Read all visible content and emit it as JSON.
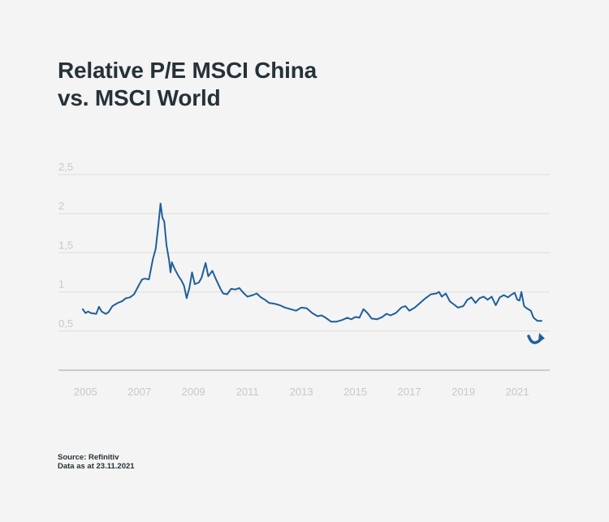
{
  "title_line1": "Relative P/E MSCI China",
  "title_line2": "vs. MSCI World",
  "source_line": "Source: Refinitiv",
  "date_line": "Data as at 23.11.2021",
  "colors": {
    "line": "#1f5f9a",
    "grid": "#dddddd",
    "axis": "#bdbdbd",
    "tick": "#c8c8c8",
    "title": "#263238",
    "background": "#f4f4f4"
  },
  "annotation_icon": "curved-arrow-up-icon",
  "chart_data": {
    "type": "line",
    "title": "Relative P/E MSCI China vs. MSCI World",
    "xlabel": "",
    "ylabel": "",
    "xlim": [
      2004,
      2022.2
    ],
    "ylim": [
      0,
      2.5
    ],
    "x_ticks": [
      2005,
      2007,
      2009,
      2011,
      2013,
      2015,
      2017,
      2019,
      2021
    ],
    "y_ticks": [
      {
        "value": 0.5,
        "label": "0,5"
      },
      {
        "value": 1,
        "label": "1"
      },
      {
        "value": 1.5,
        "label": "1,5"
      },
      {
        "value": 2,
        "label": "2"
      },
      {
        "value": 2.5,
        "label": "2,5"
      }
    ],
    "grid": true,
    "series": [
      {
        "points": [
          [
            2004.9,
            0.78
          ],
          [
            2005.0,
            0.73
          ],
          [
            2005.1,
            0.75
          ],
          [
            2005.2,
            0.73
          ],
          [
            2005.4,
            0.72
          ],
          [
            2005.5,
            0.81
          ],
          [
            2005.6,
            0.75
          ],
          [
            2005.75,
            0.72
          ],
          [
            2005.85,
            0.74
          ],
          [
            2006.0,
            0.82
          ],
          [
            2006.2,
            0.86
          ],
          [
            2006.35,
            0.88
          ],
          [
            2006.5,
            0.92
          ],
          [
            2006.65,
            0.93
          ],
          [
            2006.8,
            0.97
          ],
          [
            2007.0,
            1.1
          ],
          [
            2007.1,
            1.16
          ],
          [
            2007.2,
            1.17
          ],
          [
            2007.35,
            1.16
          ],
          [
            2007.5,
            1.42
          ],
          [
            2007.6,
            1.55
          ],
          [
            2007.7,
            1.85
          ],
          [
            2007.78,
            2.13
          ],
          [
            2007.85,
            1.95
          ],
          [
            2007.92,
            1.9
          ],
          [
            2008.0,
            1.6
          ],
          [
            2008.1,
            1.4
          ],
          [
            2008.15,
            1.25
          ],
          [
            2008.2,
            1.38
          ],
          [
            2008.3,
            1.3
          ],
          [
            2008.45,
            1.2
          ],
          [
            2008.55,
            1.15
          ],
          [
            2008.65,
            1.08
          ],
          [
            2008.75,
            0.92
          ],
          [
            2008.85,
            1.05
          ],
          [
            2008.95,
            1.25
          ],
          [
            2009.05,
            1.1
          ],
          [
            2009.2,
            1.12
          ],
          [
            2009.3,
            1.18
          ],
          [
            2009.45,
            1.37
          ],
          [
            2009.55,
            1.2
          ],
          [
            2009.7,
            1.27
          ],
          [
            2009.85,
            1.15
          ],
          [
            2010.0,
            1.04
          ],
          [
            2010.1,
            0.98
          ],
          [
            2010.25,
            0.97
          ],
          [
            2010.4,
            1.04
          ],
          [
            2010.55,
            1.03
          ],
          [
            2010.7,
            1.05
          ],
          [
            2010.85,
            0.99
          ],
          [
            2011.0,
            0.94
          ],
          [
            2011.2,
            0.96
          ],
          [
            2011.35,
            0.98
          ],
          [
            2011.5,
            0.93
          ],
          [
            2011.65,
            0.9
          ],
          [
            2011.8,
            0.86
          ],
          [
            2012.0,
            0.85
          ],
          [
            2012.2,
            0.83
          ],
          [
            2012.4,
            0.8
          ],
          [
            2012.6,
            0.78
          ],
          [
            2012.8,
            0.76
          ],
          [
            2013.0,
            0.8
          ],
          [
            2013.2,
            0.79
          ],
          [
            2013.4,
            0.73
          ],
          [
            2013.6,
            0.69
          ],
          [
            2013.75,
            0.7
          ],
          [
            2013.9,
            0.67
          ],
          [
            2014.1,
            0.62
          ],
          [
            2014.3,
            0.62
          ],
          [
            2014.5,
            0.64
          ],
          [
            2014.7,
            0.67
          ],
          [
            2014.85,
            0.65
          ],
          [
            2015.0,
            0.68
          ],
          [
            2015.15,
            0.67
          ],
          [
            2015.3,
            0.78
          ],
          [
            2015.45,
            0.73
          ],
          [
            2015.6,
            0.66
          ],
          [
            2015.8,
            0.65
          ],
          [
            2016.0,
            0.68
          ],
          [
            2016.15,
            0.72
          ],
          [
            2016.3,
            0.7
          ],
          [
            2016.5,
            0.73
          ],
          [
            2016.7,
            0.8
          ],
          [
            2016.85,
            0.82
          ],
          [
            2017.0,
            0.76
          ],
          [
            2017.2,
            0.8
          ],
          [
            2017.4,
            0.86
          ],
          [
            2017.6,
            0.92
          ],
          [
            2017.8,
            0.97
          ],
          [
            2018.0,
            0.98
          ],
          [
            2018.1,
            1.0
          ],
          [
            2018.2,
            0.94
          ],
          [
            2018.35,
            0.98
          ],
          [
            2018.5,
            0.88
          ],
          [
            2018.65,
            0.84
          ],
          [
            2018.8,
            0.8
          ],
          [
            2019.0,
            0.82
          ],
          [
            2019.15,
            0.9
          ],
          [
            2019.3,
            0.93
          ],
          [
            2019.45,
            0.86
          ],
          [
            2019.6,
            0.92
          ],
          [
            2019.75,
            0.94
          ],
          [
            2019.9,
            0.9
          ],
          [
            2020.05,
            0.94
          ],
          [
            2020.2,
            0.83
          ],
          [
            2020.35,
            0.93
          ],
          [
            2020.5,
            0.96
          ],
          [
            2020.65,
            0.93
          ],
          [
            2020.8,
            0.97
          ],
          [
            2020.9,
            0.99
          ],
          [
            2021.0,
            0.9
          ],
          [
            2021.08,
            0.89
          ],
          [
            2021.15,
            1.0
          ],
          [
            2021.25,
            0.82
          ],
          [
            2021.35,
            0.79
          ],
          [
            2021.5,
            0.76
          ],
          [
            2021.6,
            0.67
          ],
          [
            2021.75,
            0.63
          ],
          [
            2021.9,
            0.63
          ]
        ]
      }
    ]
  }
}
